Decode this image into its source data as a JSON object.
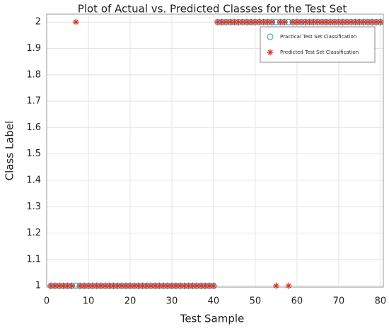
{
  "chart_data": {
    "type": "scatter",
    "title": "Plot of Actual vs. Predicted Classes for the Test Set",
    "x_label": "Test Sample",
    "y_label": "Class Label",
    "x": [
      1,
      2,
      3,
      4,
      5,
      6,
      7,
      8,
      9,
      10,
      11,
      12,
      13,
      14,
      15,
      16,
      17,
      18,
      19,
      20,
      21,
      22,
      23,
      24,
      25,
      26,
      27,
      28,
      29,
      30,
      31,
      32,
      33,
      34,
      35,
      36,
      37,
      38,
      39,
      40,
      41,
      42,
      43,
      44,
      45,
      46,
      47,
      48,
      49,
      50,
      51,
      52,
      53,
      54,
      55,
      56,
      57,
      58,
      59,
      60,
      61,
      62,
      63,
      64,
      65,
      66,
      67,
      68,
      69,
      70,
      71,
      72,
      73,
      74,
      75,
      76,
      77,
      78,
      79,
      80
    ],
    "series": [
      {
        "name": "Practical Test Set Classification",
        "color": "#4fa8c9",
        "marker": "circle",
        "values": [
          1,
          1,
          1,
          1,
          1,
          1,
          1,
          1,
          1,
          1,
          1,
          1,
          1,
          1,
          1,
          1,
          1,
          1,
          1,
          1,
          1,
          1,
          1,
          1,
          1,
          1,
          1,
          1,
          1,
          1,
          1,
          1,
          1,
          1,
          1,
          1,
          1,
          1,
          1,
          1,
          2,
          2,
          2,
          2,
          2,
          2,
          2,
          2,
          2,
          2,
          2,
          2,
          2,
          2,
          2,
          2,
          2,
          2,
          2,
          2,
          2,
          2,
          2,
          2,
          2,
          2,
          2,
          2,
          2,
          2,
          2,
          2,
          2,
          2,
          2,
          2,
          2,
          2,
          2,
          2
        ]
      },
      {
        "name": "Predicted Test Set Classification",
        "color": "#d23a2a",
        "marker": "asterisk",
        "values": [
          1,
          1,
          1,
          1,
          1,
          1,
          2,
          1,
          1,
          1,
          1,
          1,
          1,
          1,
          1,
          1,
          1,
          1,
          1,
          1,
          1,
          1,
          1,
          1,
          1,
          1,
          1,
          1,
          1,
          1,
          1,
          1,
          1,
          1,
          1,
          1,
          1,
          1,
          1,
          1,
          2,
          2,
          2,
          2,
          2,
          2,
          2,
          2,
          2,
          2,
          2,
          2,
          2,
          2,
          1,
          2,
          2,
          1,
          2,
          2,
          2,
          2,
          2,
          2,
          2,
          2,
          2,
          2,
          2,
          2,
          2,
          2,
          2,
          2,
          2,
          2,
          2,
          2,
          2,
          2
        ]
      }
    ],
    "xlim": [
      0,
      80.7
    ],
    "xticks": [
      0,
      10,
      20,
      30,
      40,
      50,
      60,
      70,
      80
    ],
    "ylim": [
      0.995,
      2.03
    ],
    "yticks": [
      1,
      1.1,
      1.2,
      1.3,
      1.4,
      1.5,
      1.6,
      1.7,
      1.8,
      1.9,
      2
    ],
    "grid": true,
    "legend": "upper right"
  }
}
